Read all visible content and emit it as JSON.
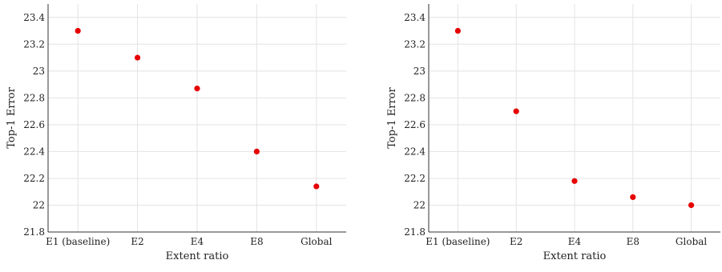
{
  "chart_data": [
    {
      "type": "scatter",
      "title": "",
      "xlabel": "Extent ratio",
      "ylabel": "Top-1 Error",
      "categories": [
        "E1 (baseline)",
        "E2",
        "E4",
        "E8",
        "Global"
      ],
      "values": [
        23.3,
        23.1,
        22.87,
        22.4,
        22.14
      ],
      "ylim": [
        21.8,
        23.5
      ],
      "yticks": [
        21.8,
        22,
        22.2,
        22.4,
        22.6,
        22.8,
        23,
        23.2,
        23.4
      ],
      "ytick_labels": [
        "21.8",
        "22",
        "22.2",
        "22.4",
        "22.6",
        "22.8",
        "23",
        "23.2",
        "23.4"
      ],
      "grid": true,
      "marker_color": "#e60000"
    },
    {
      "type": "scatter",
      "title": "",
      "xlabel": "Extent ratio",
      "ylabel": "Top-1 Error",
      "categories": [
        "E1 (baseline)",
        "E2",
        "E4",
        "E8",
        "Global"
      ],
      "values": [
        23.3,
        22.7,
        22.18,
        22.06,
        22.0
      ],
      "ylim": [
        21.8,
        23.5
      ],
      "yticks": [
        21.8,
        22,
        22.2,
        22.4,
        22.6,
        22.8,
        23,
        23.2,
        23.4
      ],
      "ytick_labels": [
        "21.8",
        "22",
        "22.2",
        "22.4",
        "22.6",
        "22.8",
        "23",
        "23.2",
        "23.4"
      ],
      "grid": true,
      "marker_color": "#e60000"
    }
  ]
}
